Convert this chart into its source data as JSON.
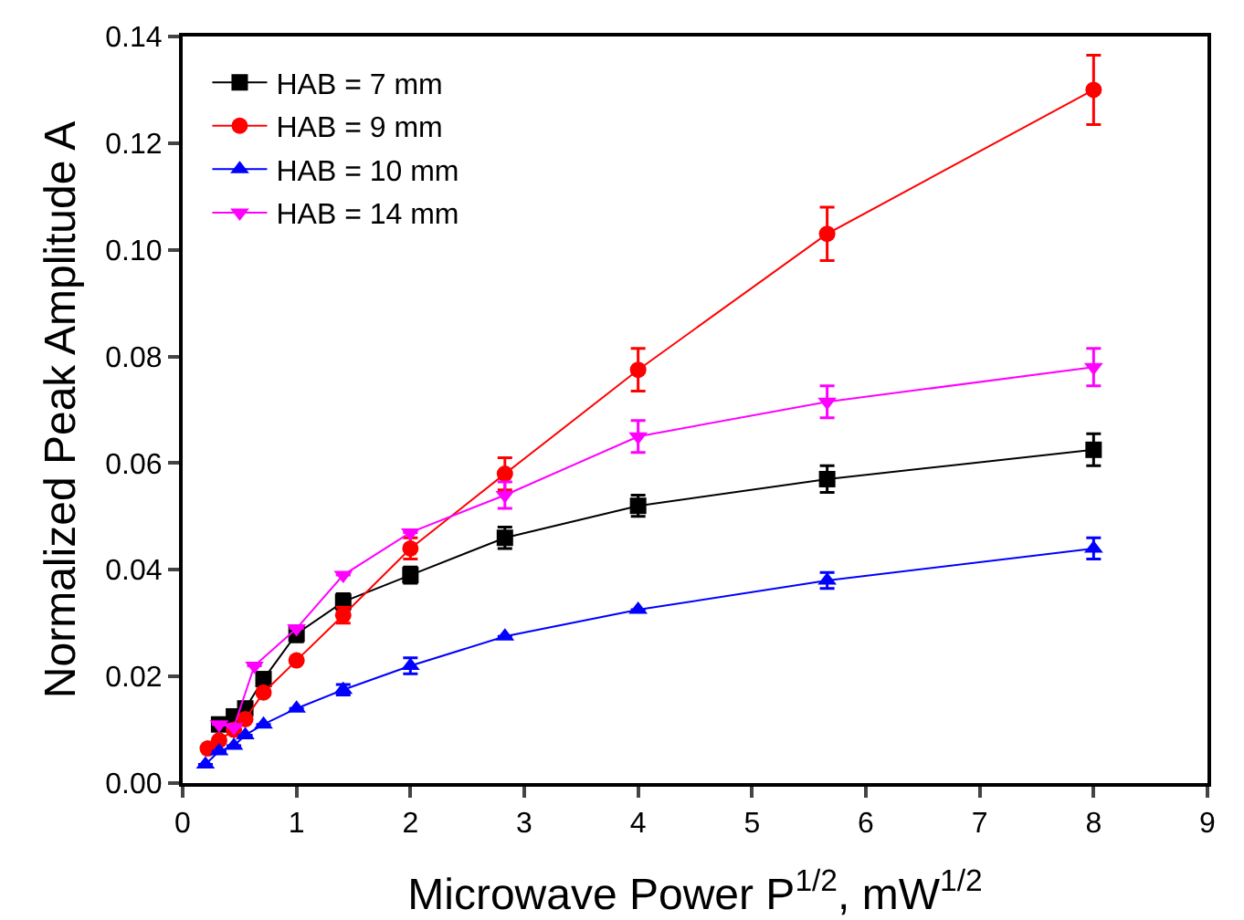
{
  "chart_data": {
    "type": "line",
    "xlabel": "Microwave Power P$^{1/2}$, mW$^{1/2}$",
    "ylabel": "Normalized Peak Amplitude A",
    "xlim": [
      0,
      9
    ],
    "xticks": [
      0,
      1,
      2,
      3,
      4,
      5,
      6,
      7,
      8,
      9
    ],
    "ylim": [
      0,
      0.14
    ],
    "yticks": [
      {
        "value": 0,
        "label": "0.00"
      },
      {
        "value": 0.02,
        "label": "0.02"
      },
      {
        "value": 0.04,
        "label": "0.04"
      },
      {
        "value": 0.06,
        "label": "0.06"
      },
      {
        "value": 0.08,
        "label": "0.08"
      },
      {
        "value": 0.1,
        "label": "0.10"
      },
      {
        "value": 0.12,
        "label": "0.12"
      },
      {
        "value": 0.14,
        "label": "0.14"
      }
    ],
    "grid": false,
    "legend": "top left",
    "line_style": "solid",
    "series": [
      {
        "name": "HAB = 7 mm",
        "color": "#000000",
        "marker": "square",
        "x": [
          0.32,
          0.45,
          0.55,
          0.71,
          1,
          1.41,
          2,
          2.83,
          4,
          5.66,
          8
        ],
        "values": [
          0.011,
          0.0125,
          0.014,
          0.0195,
          0.028,
          0.034,
          0.039,
          0.046,
          0.052,
          0.057,
          0.0625
        ],
        "errors": [
          null,
          null,
          null,
          null,
          0.0015,
          0.0015,
          0.0015,
          0.002,
          0.002,
          0.0025,
          0.003
        ]
      },
      {
        "name": "HAB = 9 mm",
        "color": "#ff0000",
        "marker": "circle",
        "x": [
          0.22,
          0.32,
          0.45,
          0.55,
          0.71,
          1,
          1.41,
          2,
          2.83,
          4,
          5.66,
          8
        ],
        "values": [
          0.0065,
          0.008,
          0.01,
          0.012,
          0.017,
          0.023,
          0.0315,
          0.044,
          0.058,
          0.0775,
          0.103,
          0.13
        ],
        "errors": [
          null,
          null,
          null,
          null,
          null,
          null,
          0.0015,
          0.002,
          0.003,
          0.004,
          0.005,
          0.0065
        ]
      },
      {
        "name": "HAB = 10 mm",
        "color": "#0000ff",
        "marker": "triangle",
        "x": [
          0.2,
          0.32,
          0.45,
          0.55,
          0.71,
          1,
          1.41,
          2,
          2.83,
          4,
          5.66,
          8
        ],
        "values": [
          0.0035,
          0.006,
          0.007,
          0.009,
          0.011,
          0.014,
          0.0175,
          0.022,
          0.0275,
          0.0325,
          0.038,
          0.044
        ],
        "errors": [
          null,
          null,
          null,
          null,
          null,
          null,
          0.001,
          0.0015,
          null,
          null,
          0.0015,
          0.002
        ]
      },
      {
        "name": "HAB = 14 mm",
        "color": "#ff00ff",
        "marker": "triangle-down",
        "x": [
          0.32,
          0.45,
          0.63,
          1,
          1.41,
          2,
          2.83,
          4,
          5.66,
          8
        ],
        "values": [
          0.011,
          0.0105,
          0.022,
          0.029,
          0.039,
          0.047,
          0.054,
          0.065,
          0.0715,
          0.078
        ],
        "errors": [
          null,
          null,
          null,
          null,
          null,
          null,
          0.0025,
          0.003,
          0.003,
          0.0035
        ]
      }
    ]
  }
}
